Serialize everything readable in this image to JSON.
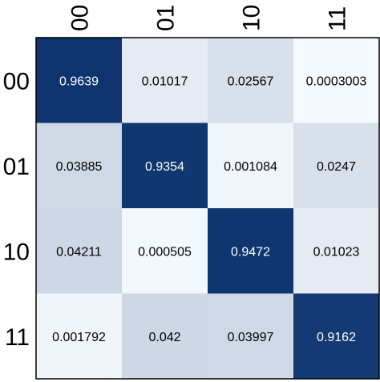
{
  "chart_data": {
    "type": "heatmap",
    "title": "",
    "xlabel": "",
    "ylabel": "",
    "x_categories": [
      "00",
      "01",
      "10",
      "11"
    ],
    "y_categories": [
      "00",
      "01",
      "10",
      "11"
    ],
    "x_tick_rotation": "rotated 90 degrees",
    "colorscale": {
      "low": "#f7fbff",
      "high": "#08306b"
    },
    "value_range": [
      0,
      1
    ],
    "values": [
      [
        "0.9639",
        "0.01017",
        "0.02567",
        "0.0003003"
      ],
      [
        "0.03885",
        "0.9354",
        "0.001084",
        "0.0247"
      ],
      [
        "0.04211",
        "0.000505",
        "0.9472",
        "0.01023"
      ],
      [
        "0.001792",
        "0.042",
        "0.03997",
        "0.9162"
      ]
    ]
  },
  "colors": {
    "diagonal": "#08306b",
    "text_light": "#ffffff",
    "text_dark": "#000000"
  }
}
